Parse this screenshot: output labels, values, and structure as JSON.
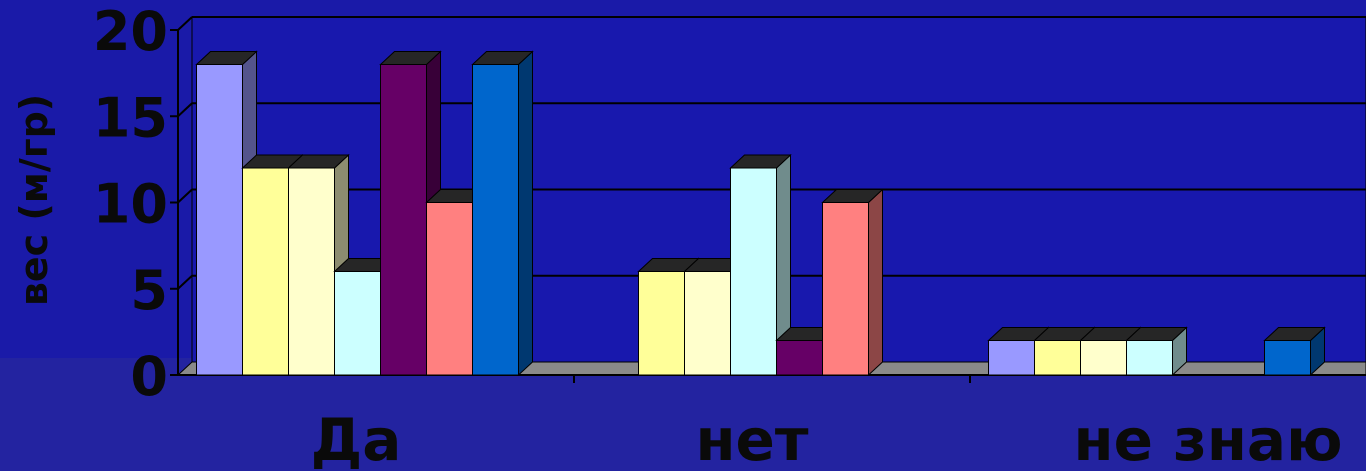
{
  "colors": {
    "background": "#1a1aa8",
    "bottom_band": "#2323a0",
    "plot_back_wall": "#1818ad",
    "floor": "#8a8a8a",
    "text": "#0a0a0a"
  },
  "chart_data": {
    "type": "bar",
    "subtype": "3d-clustered",
    "title": "",
    "xlabel": "",
    "ylabel": "вес (м/гр)",
    "ylim": [
      0,
      20
    ],
    "yticks": [
      0,
      5,
      10,
      15,
      20
    ],
    "grid": true,
    "legend": "none",
    "categories": [
      "Да",
      "нет",
      "не знаю"
    ],
    "series": [
      {
        "color": "#9999ff",
        "values": [
          18,
          0,
          2
        ]
      },
      {
        "color": "#ffff99",
        "values": [
          12,
          6,
          2
        ]
      },
      {
        "color": "#ffffcc",
        "values": [
          12,
          6,
          2
        ]
      },
      {
        "color": "#ccffff",
        "values": [
          6,
          12,
          2
        ]
      },
      {
        "color": "#660066",
        "values": [
          18,
          2,
          0
        ]
      },
      {
        "color": "#ff8080",
        "values": [
          10,
          10,
          0
        ]
      },
      {
        "color": "#0066cc",
        "values": [
          18,
          0,
          2
        ]
      }
    ]
  }
}
